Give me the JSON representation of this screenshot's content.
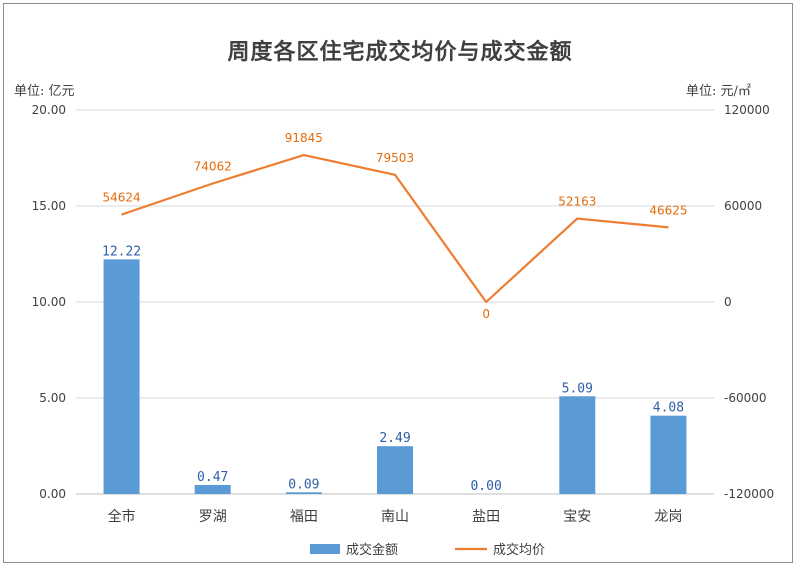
{
  "chart_data": {
    "type": "bar",
    "title": "周度各区住宅成交均价与成交金额",
    "unit_left": "单位: 亿元",
    "unit_right": "单位: 元/㎡",
    "categories": [
      "全市",
      "罗湖",
      "福田",
      "南山",
      "盐田",
      "宝安",
      "龙岗"
    ],
    "series": [
      {
        "name": "成交金额",
        "type": "bar",
        "axis": "left",
        "color": "#5b9bd5",
        "values": [
          12.22,
          0.47,
          0.09,
          2.49,
          0.0,
          5.09,
          4.08
        ],
        "labels": [
          "12.22",
          "0.47",
          "0.09",
          "2.49",
          "0.00",
          "5.09",
          "4.08"
        ]
      },
      {
        "name": "成交均价",
        "type": "line",
        "axis": "right",
        "color": "#ed7d31",
        "values": [
          54624,
          74062,
          91845,
          79503,
          0,
          52163,
          46625
        ],
        "labels": [
          "54624",
          "74062",
          "91845",
          "79503",
          "0",
          "52163",
          "46625"
        ]
      }
    ],
    "ylim_left": [
      0,
      20
    ],
    "yticks_left": [
      "0.00",
      "5.00",
      "10.00",
      "15.00",
      "20.00"
    ],
    "ylim_right": [
      -120000,
      120000
    ],
    "yticks_right": [
      "-120000",
      "-60000",
      "0",
      "60000",
      "120000"
    ],
    "grid": true,
    "legend_position": "bottom"
  }
}
